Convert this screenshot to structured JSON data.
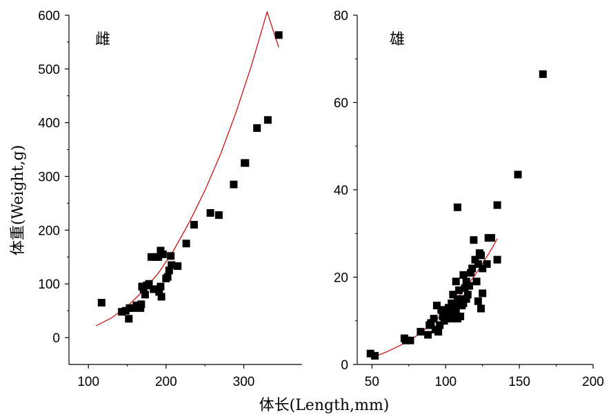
{
  "figure": {
    "ylabel": "体重(Weight,g)",
    "xlabel": "体长(Length,mm)"
  },
  "chart_data": [
    {
      "type": "scatter",
      "panel_label": "雌",
      "xlim": [
        75,
        375
      ],
      "ylim": [
        -50,
        600
      ],
      "xticks": [
        100,
        200,
        300
      ],
      "yticks": [
        0,
        100,
        200,
        300,
        400,
        500,
        600
      ],
      "marker_color": "#000000",
      "fit_color": "#cc0000",
      "points": [
        [
          117,
          65
        ],
        [
          143,
          48
        ],
        [
          148,
          50
        ],
        [
          152,
          35
        ],
        [
          153,
          55
        ],
        [
          158,
          55
        ],
        [
          162,
          60
        ],
        [
          167,
          55
        ],
        [
          168,
          62
        ],
        [
          169,
          95
        ],
        [
          171,
          90
        ],
        [
          173,
          80
        ],
        [
          175,
          97
        ],
        [
          178,
          100
        ],
        [
          181,
          150
        ],
        [
          184,
          90
        ],
        [
          186,
          150
        ],
        [
          190,
          150
        ],
        [
          191,
          85
        ],
        [
          193,
          95
        ],
        [
          193,
          162
        ],
        [
          194,
          76
        ],
        [
          196,
          155
        ],
        [
          200,
          110
        ],
        [
          202,
          113
        ],
        [
          204,
          125
        ],
        [
          206,
          152
        ],
        [
          207,
          135
        ],
        [
          215,
          133
        ],
        [
          226,
          175
        ],
        [
          236,
          210
        ],
        [
          257,
          232
        ],
        [
          268,
          228
        ],
        [
          287,
          285
        ],
        [
          301,
          325
        ],
        [
          302,
          325
        ],
        [
          317,
          390
        ],
        [
          331,
          405
        ],
        [
          345,
          563
        ]
      ],
      "fit_curve": [
        [
          110,
          22
        ],
        [
          130,
          37
        ],
        [
          150,
          58
        ],
        [
          170,
          86
        ],
        [
          190,
          120
        ],
        [
          210,
          163
        ],
        [
          230,
          215
        ],
        [
          250,
          274
        ],
        [
          270,
          341
        ],
        [
          290,
          419
        ],
        [
          310,
          507
        ],
        [
          330,
          606
        ],
        [
          345,
          540
        ]
      ]
    },
    {
      "type": "scatter",
      "panel_label": "雄",
      "xlim": [
        40,
        200
      ],
      "ylim": [
        0,
        80
      ],
      "xticks": [
        50,
        100,
        150,
        200
      ],
      "yticks": [
        0,
        20,
        40,
        60,
        80
      ],
      "marker_color": "#000000",
      "fit_color": "#cc0000",
      "points": [
        [
          49,
          2.5
        ],
        [
          52,
          2.0
        ],
        [
          72,
          6.0
        ],
        [
          73,
          5.5
        ],
        [
          76,
          5.5
        ],
        [
          83,
          7.5
        ],
        [
          88,
          6.8
        ],
        [
          89,
          9.0
        ],
        [
          90,
          9.5
        ],
        [
          92,
          10.5
        ],
        [
          93,
          8.0
        ],
        [
          94,
          13.5
        ],
        [
          95,
          7.5
        ],
        [
          96,
          9.0
        ],
        [
          97,
          12.5
        ],
        [
          98,
          11.0
        ],
        [
          99,
          10.0
        ],
        [
          100,
          12.0
        ],
        [
          101,
          10.5
        ],
        [
          102,
          13.0
        ],
        [
          103,
          11.5
        ],
        [
          104,
          12.5
        ],
        [
          104,
          14.0
        ],
        [
          105,
          10.5
        ],
        [
          105,
          16.0
        ],
        [
          106,
          11.0
        ],
        [
          106,
          13.0
        ],
        [
          107,
          12.0
        ],
        [
          107,
          19.0
        ],
        [
          108,
          10.5
        ],
        [
          108,
          14.5
        ],
        [
          108,
          36.0
        ],
        [
          109,
          17.0
        ],
        [
          110,
          11.0
        ],
        [
          110,
          15.0
        ],
        [
          111,
          13.5
        ],
        [
          112,
          14.0
        ],
        [
          112,
          20.5
        ],
        [
          113,
          17.5
        ],
        [
          114,
          15.0
        ],
        [
          114,
          19.0
        ],
        [
          115,
          16.0
        ],
        [
          116,
          18.0
        ],
        [
          117,
          21.0
        ],
        [
          118,
          22.0
        ],
        [
          119,
          28.5
        ],
        [
          120,
          24.0
        ],
        [
          121,
          19.0
        ],
        [
          122,
          23.0
        ],
        [
          122,
          14.5
        ],
        [
          123,
          25.5
        ],
        [
          124,
          12.8
        ],
        [
          124,
          25.0
        ],
        [
          125,
          22.0
        ],
        [
          125,
          16.3
        ],
        [
          128,
          23.0
        ],
        [
          129,
          29.0
        ],
        [
          131,
          29.0
        ],
        [
          135,
          24.0
        ],
        [
          135,
          36.5
        ],
        [
          149,
          43.5
        ],
        [
          166,
          66.5
        ]
      ],
      "fit_curve": [
        [
          52,
          1.8
        ],
        [
          60,
          2.9
        ],
        [
          70,
          4.5
        ],
        [
          80,
          6.5
        ],
        [
          90,
          9.1
        ],
        [
          100,
          12.2
        ],
        [
          110,
          16.0
        ],
        [
          120,
          20.5
        ],
        [
          130,
          25.8
        ],
        [
          135,
          28.8
        ]
      ]
    }
  ]
}
